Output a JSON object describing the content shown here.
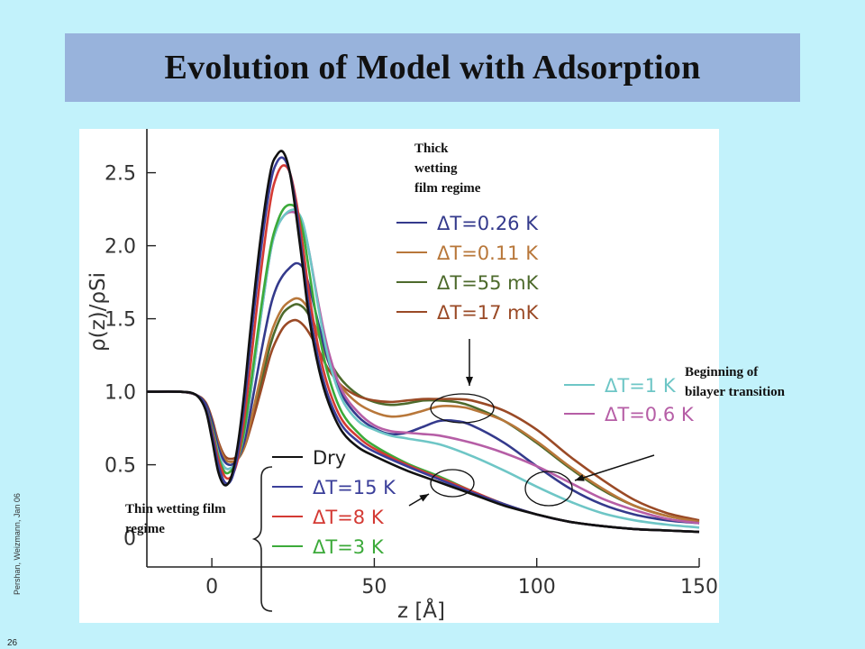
{
  "slide": {
    "title": "Evolution of Model with Adsorption",
    "footer": "Pershan, Weizmann, Jan 06",
    "page_number": "26"
  },
  "annotations": {
    "thick": [
      "Thick",
      "wetting",
      "film regime"
    ],
    "thin": "Thin wetting film regime",
    "bilayer": [
      "Beginning of",
      "bilayer transition"
    ]
  },
  "chart_data": {
    "type": "line",
    "xlabel": "z [Å]",
    "ylabel": "ρ(z)/ρSi",
    "xlim": [
      -20,
      150
    ],
    "ylim": [
      -0.2,
      2.8
    ],
    "xticks": [
      0,
      50,
      100,
      150
    ],
    "xtick_labels": [
      "0",
      "50",
      "100",
      "150"
    ],
    "yticks": [
      0.5,
      1.0,
      1.5,
      2.0,
      2.5
    ],
    "ytick_labels": [
      "0.5",
      "1.0",
      "1.5",
      "2.0",
      "2.5"
    ],
    "y_extra_label": "0",
    "legend_top": [
      "Dry",
      "ΔT=0.26 K",
      "ΔT=0.11 K",
      "ΔT=55 mK",
      "ΔT=17 mK"
    ],
    "legend_mid": [
      "ΔT=1 K",
      "ΔT=0.6 K"
    ],
    "legend_bottom": [
      "ΔT=15 K",
      "ΔT=8 K",
      "ΔT=3 K"
    ],
    "series": [
      {
        "name": "Dry",
        "color": "#111111",
        "x": [
          -20,
          -10,
          -5,
          -2,
          0,
          2,
          4,
          6,
          8,
          10,
          12,
          15,
          18,
          20,
          22,
          24,
          26,
          28,
          30,
          33,
          36,
          40,
          45,
          50,
          60,
          70,
          80,
          90,
          100,
          110,
          120,
          130,
          140,
          150
        ],
        "y": [
          1.0,
          1.0,
          0.98,
          0.88,
          0.68,
          0.45,
          0.36,
          0.42,
          0.64,
          1.0,
          1.45,
          2.05,
          2.5,
          2.62,
          2.64,
          2.5,
          2.2,
          1.85,
          1.5,
          1.15,
          0.92,
          0.73,
          0.62,
          0.56,
          0.46,
          0.38,
          0.3,
          0.22,
          0.16,
          0.11,
          0.08,
          0.06,
          0.05,
          0.04
        ]
      },
      {
        "name": "ΔT=15 K",
        "color": "#3b3f9a",
        "x": [
          -20,
          -10,
          -5,
          -2,
          0,
          2,
          4,
          6,
          8,
          10,
          12,
          15,
          18,
          20,
          22,
          24,
          26,
          28,
          30,
          33,
          36,
          40,
          45,
          50,
          60,
          70,
          80,
          90,
          100,
          110,
          120,
          130,
          140,
          150
        ],
        "y": [
          1.0,
          1.0,
          0.98,
          0.9,
          0.72,
          0.5,
          0.38,
          0.4,
          0.58,
          0.92,
          1.35,
          1.95,
          2.42,
          2.57,
          2.6,
          2.5,
          2.25,
          1.9,
          1.56,
          1.2,
          0.96,
          0.77,
          0.66,
          0.59,
          0.49,
          0.4,
          0.31,
          0.23,
          0.16,
          0.11,
          0.08,
          0.06,
          0.05,
          0.04
        ]
      },
      {
        "name": "ΔT=8 K",
        "color": "#d43a34",
        "x": [
          -20,
          -10,
          -5,
          -2,
          0,
          2,
          4,
          6,
          8,
          10,
          12,
          15,
          18,
          20,
          22,
          24,
          26,
          28,
          30,
          33,
          36,
          40,
          45,
          50,
          60,
          70,
          80,
          90,
          100,
          110,
          120,
          130,
          140,
          150
        ],
        "y": [
          1.0,
          1.0,
          0.98,
          0.9,
          0.74,
          0.54,
          0.42,
          0.42,
          0.54,
          0.82,
          1.2,
          1.8,
          2.3,
          2.48,
          2.55,
          2.5,
          2.3,
          2.0,
          1.66,
          1.28,
          1.02,
          0.81,
          0.69,
          0.61,
          0.5,
          0.41,
          0.32,
          0.23,
          0.16,
          0.11,
          0.08,
          0.06,
          0.05,
          0.04
        ]
      },
      {
        "name": "ΔT=3 K",
        "color": "#3caa3a",
        "x": [
          -20,
          -10,
          -5,
          -2,
          0,
          2,
          4,
          6,
          8,
          10,
          12,
          15,
          18,
          20,
          22,
          24,
          26,
          28,
          30,
          33,
          36,
          40,
          45,
          50,
          60,
          70,
          80,
          90,
          100,
          110,
          120,
          130,
          140,
          150
        ],
        "y": [
          1.0,
          1.0,
          0.98,
          0.9,
          0.76,
          0.56,
          0.45,
          0.46,
          0.54,
          0.74,
          1.05,
          1.55,
          1.98,
          2.15,
          2.25,
          2.28,
          2.25,
          2.1,
          1.82,
          1.4,
          1.1,
          0.86,
          0.72,
          0.63,
          0.51,
          0.42,
          0.32,
          0.23,
          0.16,
          0.11,
          0.08,
          0.06,
          0.05,
          0.04
        ]
      },
      {
        "name": "ΔT=1 K",
        "color": "#6ec6c6",
        "x": [
          -20,
          -10,
          -5,
          -2,
          0,
          2,
          4,
          6,
          8,
          10,
          12,
          15,
          18,
          20,
          22,
          24,
          26,
          28,
          30,
          33,
          36,
          40,
          45,
          50,
          55,
          60,
          70,
          80,
          90,
          100,
          110,
          120,
          130,
          140,
          150
        ],
        "y": [
          1.0,
          1.0,
          0.98,
          0.9,
          0.76,
          0.58,
          0.48,
          0.48,
          0.54,
          0.72,
          1.0,
          1.5,
          1.95,
          2.12,
          2.2,
          2.24,
          2.24,
          2.16,
          1.95,
          1.55,
          1.22,
          0.95,
          0.8,
          0.74,
          0.7,
          0.68,
          0.64,
          0.56,
          0.46,
          0.35,
          0.25,
          0.17,
          0.12,
          0.09,
          0.07
        ]
      },
      {
        "name": "ΔT=0.6 K",
        "color": "#b65ea6",
        "x": [
          -20,
          -10,
          -5,
          -2,
          0,
          2,
          4,
          6,
          8,
          10,
          12,
          15,
          18,
          20,
          22,
          24,
          26,
          28,
          30,
          33,
          36,
          40,
          45,
          50,
          55,
          60,
          65,
          70,
          80,
          90,
          100,
          110,
          120,
          130,
          140,
          150
        ],
        "y": [
          1.0,
          1.0,
          0.98,
          0.9,
          0.76,
          0.58,
          0.48,
          0.48,
          0.54,
          0.72,
          1.0,
          1.5,
          1.95,
          2.12,
          2.2,
          2.23,
          2.22,
          2.15,
          1.95,
          1.58,
          1.27,
          1.01,
          0.86,
          0.77,
          0.73,
          0.72,
          0.71,
          0.7,
          0.65,
          0.58,
          0.49,
          0.38,
          0.27,
          0.19,
          0.13,
          0.1
        ]
      },
      {
        "name": "ΔT=0.26 K",
        "color": "#343a8c",
        "x": [
          -20,
          -10,
          -5,
          -2,
          0,
          2,
          4,
          6,
          8,
          10,
          12,
          15,
          18,
          20,
          22,
          24,
          26,
          28,
          30,
          33,
          36,
          40,
          45,
          50,
          55,
          60,
          65,
          70,
          75,
          80,
          90,
          100,
          110,
          120,
          130,
          140,
          150
        ],
        "y": [
          1.0,
          1.0,
          0.98,
          0.92,
          0.8,
          0.62,
          0.52,
          0.5,
          0.54,
          0.66,
          0.88,
          1.25,
          1.58,
          1.72,
          1.8,
          1.85,
          1.88,
          1.85,
          1.72,
          1.45,
          1.2,
          0.98,
          0.83,
          0.75,
          0.71,
          0.72,
          0.76,
          0.8,
          0.8,
          0.77,
          0.65,
          0.49,
          0.34,
          0.23,
          0.16,
          0.12,
          0.1
        ]
      },
      {
        "name": "ΔT=0.11 K",
        "color": "#b8773a",
        "x": [
          -20,
          -10,
          -5,
          -2,
          0,
          2,
          4,
          6,
          8,
          10,
          12,
          15,
          18,
          20,
          22,
          24,
          26,
          28,
          30,
          33,
          36,
          40,
          45,
          50,
          55,
          60,
          65,
          70,
          75,
          80,
          90,
          100,
          110,
          120,
          130,
          140,
          150
        ],
        "y": [
          1.0,
          1.0,
          0.98,
          0.92,
          0.8,
          0.64,
          0.54,
          0.52,
          0.54,
          0.62,
          0.8,
          1.1,
          1.38,
          1.5,
          1.58,
          1.62,
          1.64,
          1.62,
          1.55,
          1.38,
          1.2,
          1.03,
          0.92,
          0.86,
          0.83,
          0.84,
          0.87,
          0.9,
          0.9,
          0.88,
          0.8,
          0.66,
          0.49,
          0.34,
          0.22,
          0.15,
          0.11
        ]
      },
      {
        "name": "ΔT=55 mK",
        "color": "#4d6a2c",
        "x": [
          -20,
          -10,
          -5,
          -2,
          0,
          2,
          4,
          6,
          8,
          10,
          12,
          15,
          18,
          20,
          22,
          24,
          26,
          28,
          30,
          33,
          36,
          40,
          45,
          50,
          55,
          60,
          65,
          70,
          75,
          80,
          90,
          100,
          110,
          120,
          130,
          140,
          150
        ],
        "y": [
          1.0,
          1.0,
          0.98,
          0.92,
          0.8,
          0.64,
          0.54,
          0.52,
          0.54,
          0.62,
          0.78,
          1.05,
          1.32,
          1.45,
          1.54,
          1.58,
          1.6,
          1.58,
          1.52,
          1.38,
          1.22,
          1.08,
          0.98,
          0.93,
          0.91,
          0.92,
          0.94,
          0.94,
          0.93,
          0.9,
          0.8,
          0.65,
          0.48,
          0.33,
          0.22,
          0.15,
          0.11
        ]
      },
      {
        "name": "ΔT=17 mK",
        "color": "#9a4a26",
        "x": [
          -20,
          -10,
          -5,
          -2,
          0,
          2,
          4,
          6,
          8,
          10,
          12,
          15,
          18,
          20,
          22,
          24,
          26,
          28,
          30,
          33,
          36,
          40,
          45,
          50,
          55,
          60,
          65,
          70,
          75,
          80,
          90,
          100,
          110,
          120,
          130,
          140,
          150
        ],
        "y": [
          1.0,
          1.0,
          0.98,
          0.93,
          0.82,
          0.66,
          0.56,
          0.54,
          0.56,
          0.62,
          0.76,
          1.0,
          1.25,
          1.36,
          1.44,
          1.48,
          1.49,
          1.46,
          1.4,
          1.28,
          1.15,
          1.04,
          0.97,
          0.94,
          0.93,
          0.94,
          0.95,
          0.95,
          0.95,
          0.94,
          0.87,
          0.74,
          0.56,
          0.4,
          0.26,
          0.17,
          0.12
        ]
      }
    ]
  }
}
